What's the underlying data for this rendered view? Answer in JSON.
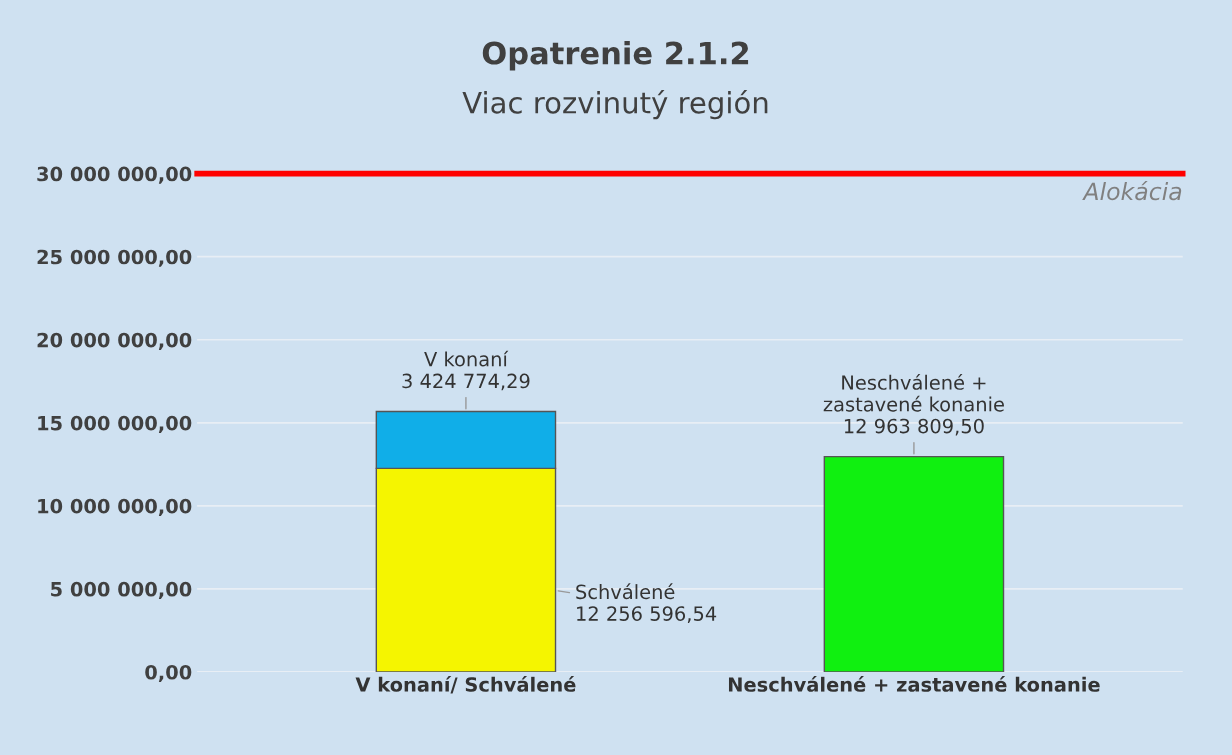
{
  "chart_data": {
    "type": "bar",
    "title": "Opatrenie 2.1.2",
    "subtitle": "Viac rozvinutý región",
    "stacked": true,
    "categories": [
      "V konaní/ Schválené",
      "Neschválené + zastavené konanie"
    ],
    "series": [
      {
        "name": "Schválené",
        "color": "#f5f500",
        "values": [
          12256596.54,
          null
        ],
        "value_labels": [
          "12 256 596,54",
          null
        ]
      },
      {
        "name": "V konaní",
        "color": "#10aee8",
        "values": [
          3424774.29,
          null
        ],
        "value_labels": [
          "3 424 774,29",
          null
        ]
      },
      {
        "name": "Neschválené + zastavené konanie",
        "color": "#10f010",
        "values": [
          null,
          12963809.5
        ],
        "value_labels": [
          null,
          "12 963 809,50"
        ]
      }
    ],
    "ylim": [
      0,
      30000000
    ],
    "yticks": [
      {
        "value": 0,
        "label": "0,00"
      },
      {
        "value": 5000000,
        "label": "5 000 000,00"
      },
      {
        "value": 10000000,
        "label": "10 000 000,00"
      },
      {
        "value": 15000000,
        "label": "15 000 000,00"
      },
      {
        "value": 20000000,
        "label": "20 000 000,00"
      },
      {
        "value": 25000000,
        "label": "25 000 000,00"
      },
      {
        "value": 30000000,
        "label": "30 000 000,00"
      }
    ],
    "ref_lines": [
      {
        "axis": "y",
        "value": 30000000,
        "label": "Alokácia",
        "color": "#ff0000"
      }
    ],
    "grid": "y",
    "legend": false
  }
}
